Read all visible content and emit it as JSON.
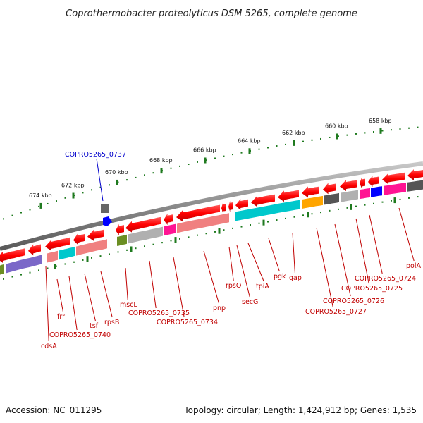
{
  "title": "Coprothermobacter proteolyticus DSM 5265, complete genome",
  "accession_text": "Accession: NC_011295",
  "topology_text": "Topology: circular; Length: 1,424,912 bp; Genes: 1,535",
  "ruler_ticks": [
    "674 kbp",
    "672 kbp",
    "670 kbp",
    "668 kbp",
    "666 kbp",
    "664 kbp",
    "662 kbp",
    "660 kbp",
    "658 kbp"
  ],
  "highlight_gene": "COPRO5265_0737",
  "gene_labels": [
    "cdsA",
    "frr",
    "COPRO5265_0740",
    "tsf",
    "rpsB",
    "mscL",
    "COPRO5265_0735",
    "COPRO5265_0734",
    "pnp",
    "rpsO",
    "secG",
    "tpiA",
    "pgk",
    "gap",
    "COPRO5265_0727",
    "COPRO5265_0726",
    "COPRO5265_0725",
    "COPRO5265_0724",
    "polA"
  ],
  "colors": {
    "gene_red": "#e80000",
    "backbone": "#888888",
    "ruler_green": "#1f7a1f",
    "label_red": "#c00000",
    "label_blue": "#0000cc",
    "cog_purple": "#7b68c8",
    "cog_cyan": "#00c8cc",
    "cog_pink": "#ff1493",
    "cog_salmon": "#f08080",
    "cog_gray": "#b0b0b0",
    "cog_olive": "#6b8e23",
    "cog_orange": "#ffa500",
    "cog_blue": "#0000ff",
    "cog_dark": "#555555"
  }
}
